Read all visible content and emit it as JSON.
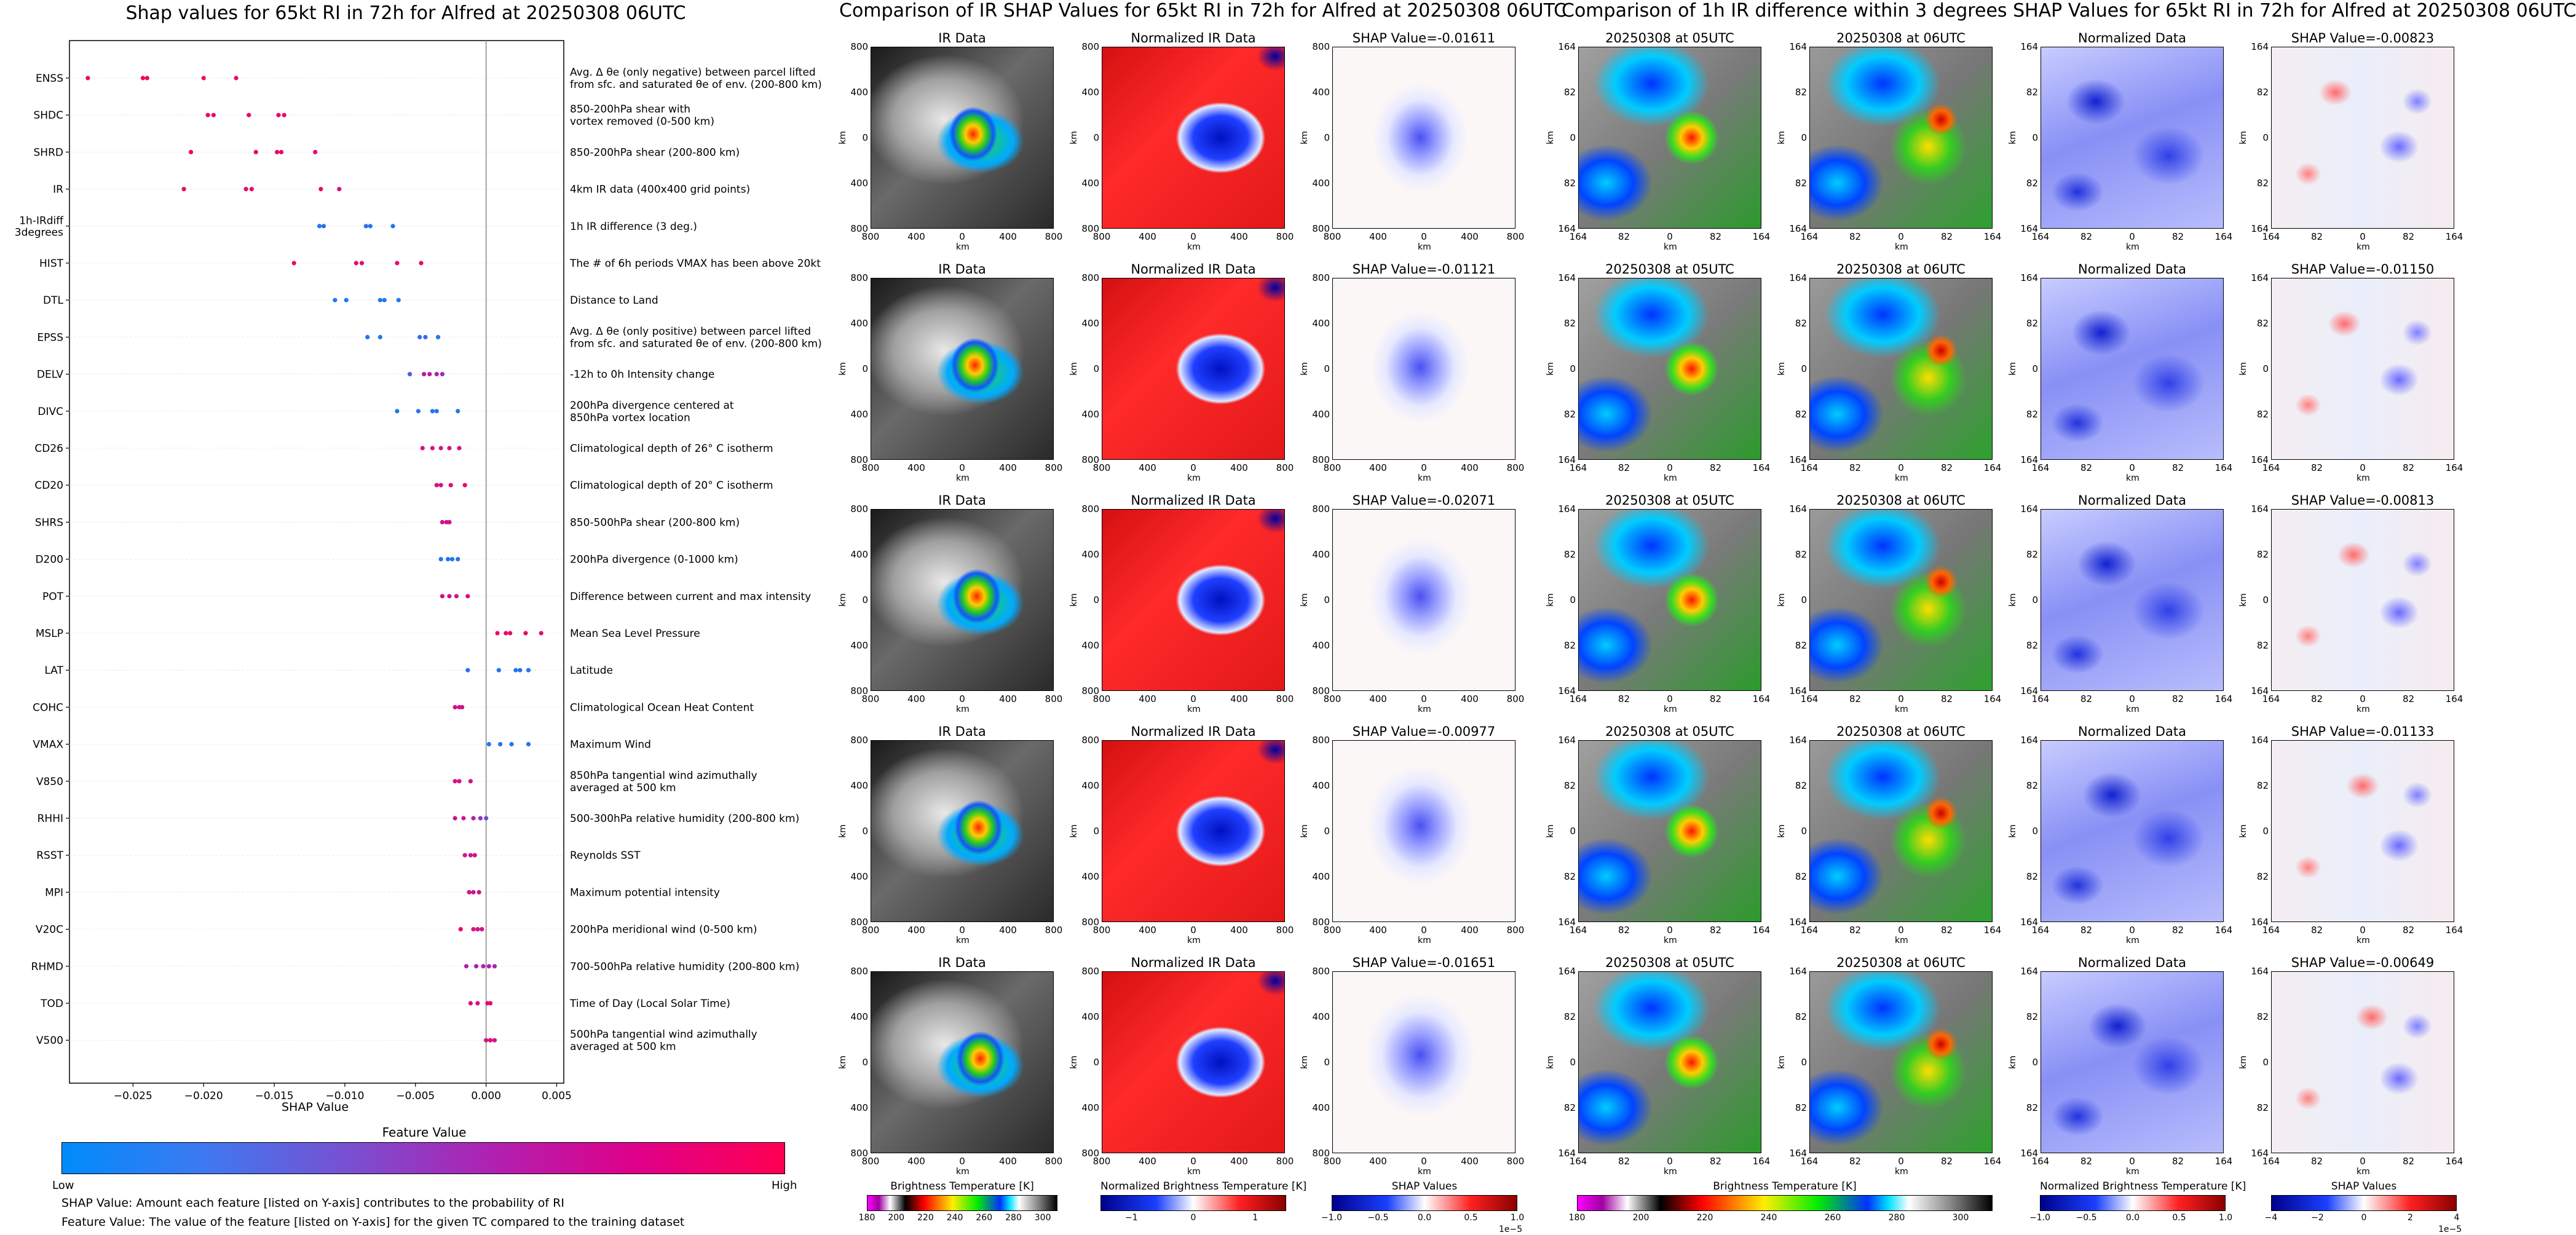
{
  "left_title": "Shap values for 65kt RI in 72h for Alfred at 20250308 06UTC",
  "mid_title": "Comparison of IR SHAP Values for 65kt RI in 72h for Alfred at 20250308 06UTC",
  "right_title": "Comparison of 1h IR difference within 3 degrees SHAP Values for 65kt RI in 72h for Alfred at 20250308 06UTC",
  "chart_data": {
    "type": "scatter",
    "xlabel": "SHAP Value",
    "xlim": [
      -0.0295,
      0.0055
    ],
    "xticks": [
      -0.025,
      -0.02,
      -0.015,
      -0.01,
      -0.005,
      0.0,
      0.005
    ],
    "xtick_labels": [
      "−0.025",
      "−0.020",
      "−0.015",
      "−0.010",
      "−0.005",
      "0.000",
      "0.005"
    ],
    "features": [
      {
        "name": "ENSS",
        "desc": "Avg. Δ θe (only negative) between parcel lifted\nfrom sfc. and saturated θe of env. (200-800 km)",
        "points": [
          [
            -0.0282,
            0.9
          ],
          [
            -0.0243,
            0.92
          ],
          [
            -0.024,
            0.92
          ],
          [
            -0.02,
            0.9
          ],
          [
            -0.0177,
            0.85
          ]
        ]
      },
      {
        "name": "SHDC",
        "desc": "850-200hPa shear with\nvortex removed (0-500 km)",
        "points": [
          [
            -0.0197,
            0.9
          ],
          [
            -0.0193,
            0.88
          ],
          [
            -0.0168,
            0.86
          ],
          [
            -0.0147,
            0.9
          ],
          [
            -0.0143,
            0.88
          ]
        ]
      },
      {
        "name": "SHRD",
        "desc": "850-200hPa shear (200-800 km)",
        "points": [
          [
            -0.0209,
            0.9
          ],
          [
            -0.0163,
            0.88
          ],
          [
            -0.0148,
            0.86
          ],
          [
            -0.0145,
            0.88
          ],
          [
            -0.0121,
            0.8
          ]
        ]
      },
      {
        "name": "IR",
        "desc": "4km IR data (400x400 grid points)",
        "points": [
          [
            -0.0214,
            0.9
          ],
          [
            -0.017,
            0.88
          ],
          [
            -0.0166,
            0.86
          ],
          [
            -0.0117,
            0.88
          ],
          [
            -0.0104,
            0.8
          ]
        ]
      },
      {
        "name": "1h-IRdiff\n3degrees",
        "desc": "1h IR difference (3 deg.)",
        "points": [
          [
            -0.0118,
            0.1
          ],
          [
            -0.0115,
            0.12
          ],
          [
            -0.0085,
            0.12
          ],
          [
            -0.0082,
            0.1
          ],
          [
            -0.0066,
            0.1
          ]
        ]
      },
      {
        "name": "HIST",
        "desc": "The # of 6h periods VMAX has been above 20kt",
        "points": [
          [
            -0.0136,
            0.9
          ],
          [
            -0.0092,
            0.88
          ],
          [
            -0.0088,
            0.86
          ],
          [
            -0.0063,
            0.85
          ],
          [
            -0.0046,
            0.88
          ]
        ]
      },
      {
        "name": "DTL",
        "desc": "Distance to Land",
        "points": [
          [
            -0.0107,
            0.1
          ],
          [
            -0.0099,
            0.1
          ],
          [
            -0.0075,
            0.1
          ],
          [
            -0.0072,
            0.1
          ],
          [
            -0.0062,
            0.1
          ]
        ]
      },
      {
        "name": "EPSS",
        "desc": "Avg. Δ θe (only positive) between parcel lifted\nfrom sfc. and saturated θe of env. (200-800 km)",
        "points": [
          [
            -0.0084,
            0.1
          ],
          [
            -0.0075,
            0.1
          ],
          [
            -0.0047,
            0.15
          ],
          [
            -0.0043,
            0.15
          ],
          [
            -0.0034,
            0.1
          ]
        ]
      },
      {
        "name": "DELV",
        "desc": "-12h to 0h Intensity change",
        "points": [
          [
            -0.0054,
            0.2
          ],
          [
            -0.0044,
            0.55
          ],
          [
            -0.004,
            0.55
          ],
          [
            -0.0035,
            0.5
          ],
          [
            -0.0031,
            0.45
          ]
        ]
      },
      {
        "name": "DIVC",
        "desc": "200hPa divergence centered at\n850hPa vortex location",
        "points": [
          [
            -0.0063,
            0.1
          ],
          [
            -0.0048,
            0.1
          ],
          [
            -0.0038,
            0.1
          ],
          [
            -0.0035,
            0.1
          ],
          [
            -0.002,
            0.1
          ]
        ]
      },
      {
        "name": "CD26",
        "desc": "Climatological depth of 26° C isotherm",
        "points": [
          [
            -0.0045,
            0.75
          ],
          [
            -0.0038,
            0.75
          ],
          [
            -0.0032,
            0.75
          ],
          [
            -0.0026,
            0.75
          ],
          [
            -0.0019,
            0.75
          ]
        ]
      },
      {
        "name": "CD20",
        "desc": "Climatological depth of 20° C isotherm",
        "points": [
          [
            -0.0035,
            0.75
          ],
          [
            -0.0032,
            0.7
          ],
          [
            -0.0025,
            0.8
          ],
          [
            -0.0015,
            0.85
          ]
        ]
      },
      {
        "name": "SHRS",
        "desc": "850-500hPa shear (200-800 km)",
        "points": [
          [
            -0.0031,
            0.7
          ],
          [
            -0.0028,
            0.7
          ],
          [
            -0.0026,
            0.7
          ]
        ]
      },
      {
        "name": "D200",
        "desc": "200hPa divergence (0-1000 km)",
        "points": [
          [
            -0.0032,
            0.1
          ],
          [
            -0.0027,
            0.1
          ],
          [
            -0.0024,
            0.1
          ],
          [
            -0.002,
            0.1
          ]
        ]
      },
      {
        "name": "POT",
        "desc": "Difference between current and max intensity",
        "points": [
          [
            -0.0031,
            0.7
          ],
          [
            -0.0026,
            0.7
          ],
          [
            -0.0021,
            0.7
          ],
          [
            -0.0013,
            0.8
          ]
        ]
      },
      {
        "name": "MSLP",
        "desc": "Mean Sea Level Pressure",
        "points": [
          [
            0.0008,
            0.9
          ],
          [
            0.0014,
            0.88
          ],
          [
            0.0017,
            0.9
          ],
          [
            0.0028,
            0.88
          ],
          [
            0.0039,
            0.85
          ]
        ]
      },
      {
        "name": "LAT",
        "desc": "Latitude",
        "points": [
          [
            -0.0013,
            0.1
          ],
          [
            0.0009,
            0.1
          ],
          [
            0.0021,
            0.1
          ],
          [
            0.0024,
            0.1
          ],
          [
            0.003,
            0.1
          ]
        ]
      },
      {
        "name": "COHC",
        "desc": "Climatological Ocean Heat Content",
        "points": [
          [
            -0.0022,
            0.7
          ],
          [
            -0.0019,
            0.7
          ],
          [
            -0.0017,
            0.7
          ]
        ]
      },
      {
        "name": "VMAX",
        "desc": "Maximum Wind",
        "points": [
          [
            0.0002,
            0.1
          ],
          [
            0.001,
            0.1
          ],
          [
            0.0018,
            0.1
          ],
          [
            0.003,
            0.1
          ]
        ]
      },
      {
        "name": "V850",
        "desc": "850hPa tangential wind azimuthally\naveraged at 500 km",
        "points": [
          [
            -0.0022,
            0.8
          ],
          [
            -0.0019,
            0.75
          ],
          [
            -0.0011,
            0.7
          ]
        ]
      },
      {
        "name": "RHHI",
        "desc": "500-300hPa relative humidity (200-800 km)",
        "points": [
          [
            -0.0022,
            0.7
          ],
          [
            -0.0016,
            0.6
          ],
          [
            -0.0009,
            0.5
          ],
          [
            -0.0004,
            0.4
          ],
          [
            0.0,
            0.3
          ]
        ]
      },
      {
        "name": "RSST",
        "desc": "Reynolds SST",
        "points": [
          [
            -0.0015,
            0.7
          ],
          [
            -0.0011,
            0.7
          ],
          [
            -0.0008,
            0.7
          ]
        ]
      },
      {
        "name": "MPI",
        "desc": "Maximum potential intensity",
        "points": [
          [
            -0.0012,
            0.7
          ],
          [
            -0.0009,
            0.7
          ],
          [
            -0.0005,
            0.7
          ]
        ]
      },
      {
        "name": "V20C",
        "desc": "200hPa meridional wind (0-500 km)",
        "points": [
          [
            -0.0018,
            0.85
          ],
          [
            -0.0009,
            0.7
          ],
          [
            -0.0006,
            0.7
          ],
          [
            -0.0003,
            0.7
          ]
        ]
      },
      {
        "name": "RHMD",
        "desc": "700-500hPa relative humidity (200-800 km)",
        "points": [
          [
            -0.0014,
            0.5
          ],
          [
            -0.0007,
            0.5
          ],
          [
            -0.0002,
            0.5
          ],
          [
            0.0002,
            0.5
          ],
          [
            0.0006,
            0.5
          ]
        ]
      },
      {
        "name": "TOD",
        "desc": "Time of Day (Local Solar Time)",
        "points": [
          [
            -0.0011,
            0.75
          ],
          [
            -0.0006,
            0.75
          ],
          [
            0.0001,
            0.85
          ],
          [
            0.0003,
            0.85
          ]
        ]
      },
      {
        "name": "V500",
        "desc": "500hPa tangential wind azimuthally\naveraged at 500 km",
        "points": [
          [
            0.0,
            0.75
          ],
          [
            0.0003,
            0.75
          ],
          [
            0.0006,
            0.75
          ]
        ]
      }
    ],
    "colorbar": {
      "title": "Feature Value",
      "low": "Low",
      "high": "High",
      "colors": [
        "#008bfb",
        "#ff0052"
      ]
    }
  },
  "notes": [
    "SHAP Value: Amount each feature [listed on Y-axis] contributes to the probability of RI",
    "Feature Value: The value of the feature [listed on Y-axis] for the given TC compared to the training dataset"
  ],
  "mid_panels": {
    "col_titles": [
      "IR Data",
      "Normalized IR Data"
    ],
    "shap_titles": [
      "SHAP Value=-0.01611",
      "SHAP Value=-0.01121",
      "SHAP Value=-0.02071",
      "SHAP Value=-0.00977",
      "SHAP Value=-0.01651"
    ],
    "xticks": [
      "800",
      "400",
      "0",
      "400",
      "800"
    ],
    "yticks": [
      "800",
      "400",
      "0",
      "400",
      "800"
    ],
    "axis_label": "km"
  },
  "right_panels": {
    "col_titles": [
      "20250308 at 05UTC",
      "20250308 at 06UTC",
      "Normalized Data"
    ],
    "shap_titles": [
      "SHAP Value=-0.00823",
      "SHAP Value=-0.01150",
      "SHAP Value=-0.00813",
      "SHAP Value=-0.01133",
      "SHAP Value=-0.00649"
    ],
    "ticks": [
      "164",
      "82",
      "0",
      "82",
      "164"
    ],
    "axis_label": "km"
  },
  "colorbars": [
    {
      "label": "Brightness Temperature [K]",
      "ticks": [
        "180",
        "200",
        "220",
        "240",
        "260",
        "280",
        "300"
      ]
    },
    {
      "label": "Normalized Brightness Temperature [K]",
      "ticks": [
        "−1",
        "0",
        "1"
      ]
    },
    {
      "label": "SHAP Values",
      "ticks": [
        "−1.0",
        "−0.5",
        "0.0",
        "0.5",
        "1.0"
      ],
      "exp": "1e−5"
    },
    {
      "label": "Brightness Temperature [K]",
      "ticks": [
        "180",
        "200",
        "220",
        "240",
        "260",
        "280",
        "300"
      ]
    },
    {
      "label": "Normalized Brightness Temperature [K]",
      "ticks": [
        "−1.0",
        "−0.5",
        "0.0",
        "0.5",
        "1.0"
      ]
    },
    {
      "label": "SHAP Values",
      "ticks": [
        "−4",
        "−2",
        "0",
        "2",
        "4"
      ],
      "exp": "1e−5"
    }
  ]
}
